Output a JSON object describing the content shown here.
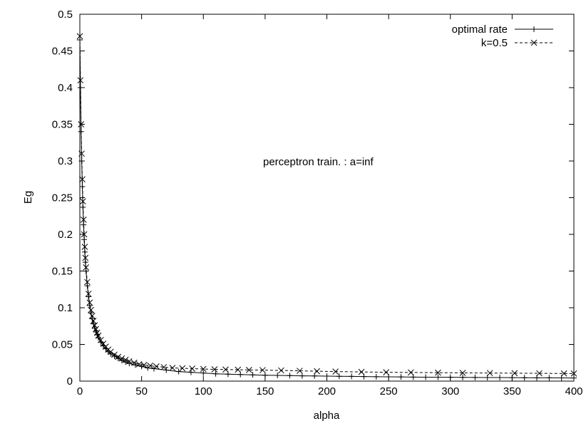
{
  "chart_data": {
    "type": "line",
    "xlabel": "alpha",
    "ylabel": "Eg",
    "xlim": [
      0,
      400
    ],
    "ylim": [
      0,
      0.5
    ],
    "xticks": [
      "0",
      "50",
      "100",
      "150",
      "200",
      "250",
      "300",
      "350",
      "400"
    ],
    "yticks": [
      "0",
      "0.05",
      "0.1",
      "0.15",
      "0.2",
      "0.25",
      "0.3",
      "0.35",
      "0.4",
      "0.45",
      "0.5"
    ],
    "grid": false,
    "legend_position": "top-right",
    "annotation": "perceptron train. : a=inf",
    "series": [
      {
        "name": "optimal rate",
        "line_style": "solid",
        "marker": "plus",
        "x": [
          0,
          0.5,
          1,
          1.5,
          2,
          2.5,
          3,
          3.5,
          4,
          4.5,
          5,
          6,
          7,
          8,
          9,
          10,
          11,
          12,
          13,
          14,
          15,
          17,
          19,
          21,
          23,
          25,
          28,
          31,
          34,
          37,
          40,
          45,
          50,
          55,
          60,
          70,
          80,
          90,
          100,
          110,
          120,
          130,
          140,
          150,
          160,
          170,
          180,
          190,
          200,
          210,
          220,
          230,
          240,
          250,
          260,
          270,
          280,
          290,
          300,
          310,
          320,
          330,
          340,
          350,
          360,
          370,
          380,
          390,
          400
        ],
        "y": [
          0.465,
          0.4,
          0.34,
          0.3,
          0.265,
          0.237,
          0.213,
          0.193,
          0.176,
          0.162,
          0.15,
          0.13,
          0.115,
          0.103,
          0.093,
          0.085,
          0.078,
          0.072,
          0.067,
          0.063,
          0.059,
          0.053,
          0.048,
          0.044,
          0.04,
          0.037,
          0.034,
          0.031,
          0.028,
          0.026,
          0.024,
          0.022,
          0.02,
          0.018,
          0.017,
          0.015,
          0.013,
          0.012,
          0.011,
          0.01,
          0.0095,
          0.009,
          0.0085,
          0.008,
          0.0078,
          0.0075,
          0.0072,
          0.007,
          0.0068,
          0.0066,
          0.0064,
          0.0062,
          0.006,
          0.0058,
          0.0057,
          0.0055,
          0.0054,
          0.0053,
          0.0052,
          0.0051,
          0.005,
          0.0049,
          0.0048,
          0.0047,
          0.0046,
          0.0045,
          0.0045,
          0.0044,
          0.0043
        ]
      },
      {
        "name": "k=0.5",
        "line_style": "dashed",
        "marker": "cross",
        "x": [
          0,
          0.5,
          1,
          1.5,
          2,
          2.5,
          3,
          3.5,
          4,
          4.5,
          5,
          6,
          7,
          8,
          9,
          10,
          11,
          12,
          13,
          14,
          15,
          17,
          19,
          21,
          23,
          25,
          28,
          31,
          34,
          37,
          40,
          44,
          48,
          52,
          57,
          62,
          68,
          75,
          83,
          91,
          100,
          109,
          118,
          128,
          137,
          148,
          163,
          178,
          192,
          207,
          228,
          248,
          268,
          290,
          310,
          332,
          352,
          372,
          392,
          400
        ],
        "y": [
          0.47,
          0.41,
          0.35,
          0.31,
          0.275,
          0.245,
          0.22,
          0.2,
          0.183,
          0.168,
          0.155,
          0.135,
          0.119,
          0.107,
          0.097,
          0.089,
          0.082,
          0.076,
          0.071,
          0.066,
          0.062,
          0.056,
          0.051,
          0.047,
          0.043,
          0.04,
          0.036,
          0.033,
          0.031,
          0.029,
          0.027,
          0.025,
          0.023,
          0.022,
          0.021,
          0.02,
          0.019,
          0.018,
          0.0175,
          0.017,
          0.0165,
          0.016,
          0.0158,
          0.0155,
          0.0152,
          0.015,
          0.0145,
          0.014,
          0.0135,
          0.013,
          0.0125,
          0.012,
          0.0118,
          0.0115,
          0.0112,
          0.011,
          0.0108,
          0.0106,
          0.0104,
          0.0103
        ]
      }
    ]
  }
}
